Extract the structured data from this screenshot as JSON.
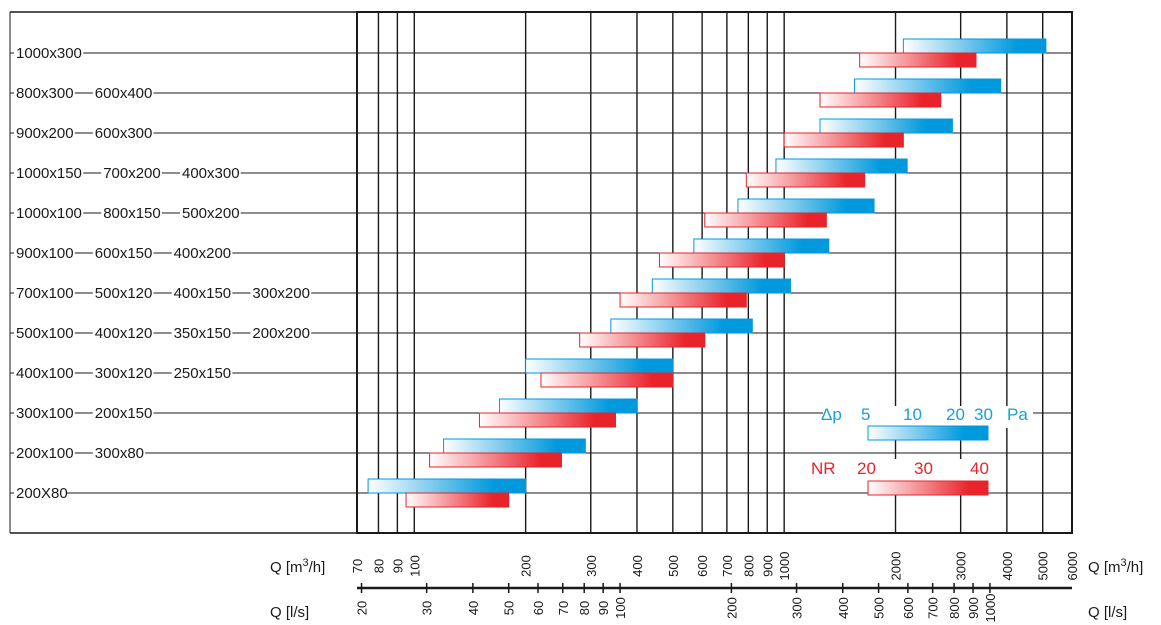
{
  "colors": {
    "dp_bar": "#0099dd",
    "dp_bar_light": "#ffffff",
    "nr_bar": "#e8232a",
    "nr_bar_light": "#ffffff",
    "dp_text": "#1aa0d8",
    "nr_text": "#e8232a",
    "grid": "#1a1a1a"
  },
  "chart_data": {
    "type": "bar",
    "orientation": "horizontal-range",
    "x_scale": "log",
    "xlim_m3h": [
      70,
      6000
    ],
    "xlabel_top": "Q [m3/h]",
    "xlabel_bottom": "Q [l/s]",
    "ticks_m3h": [
      70,
      80,
      90,
      100,
      200,
      300,
      400,
      500,
      600,
      700,
      800,
      900,
      1000,
      2000,
      3000,
      4000,
      5000,
      6000
    ],
    "ticks_m3h_labels": [
      "70",
      "80",
      "90",
      "100",
      "200",
      "300",
      "400",
      "500",
      "600",
      "700",
      "800",
      "900",
      "1000",
      "2000",
      "3000",
      "4000",
      "5000",
      "6000"
    ],
    "ticks_ls": [
      20,
      30,
      40,
      50,
      60,
      70,
      80,
      90,
      100,
      200,
      300,
      400,
      500,
      600,
      700,
      800,
      900,
      1000
    ],
    "ticks_ls_labels": [
      "20",
      "30",
      "40",
      "50",
      "60",
      "70",
      "80",
      "90",
      "100",
      "200",
      "300",
      "400",
      "500",
      "600",
      "700",
      "800",
      "900",
      "1000"
    ],
    "rows": [
      {
        "labels": [
          "1000x300"
        ],
        "dp": [
          2100,
          5100
        ],
        "nr": [
          1600,
          3300
        ]
      },
      {
        "labels": [
          "800x300",
          "600x400"
        ],
        "dp": [
          1550,
          3850
        ],
        "nr": [
          1250,
          2650
        ]
      },
      {
        "labels": [
          "900x200",
          "600x300"
        ],
        "dp": [
          1250,
          2850
        ],
        "nr": [
          1000,
          2100
        ]
      },
      {
        "labels": [
          "1000x150",
          "700x200",
          "400x300"
        ],
        "dp": [
          950,
          2150
        ],
        "nr": [
          790,
          1650
        ]
      },
      {
        "labels": [
          "1000x100",
          "800x150",
          "500x200"
        ],
        "dp": [
          750,
          1750
        ],
        "nr": [
          610,
          1300
        ]
      },
      {
        "labels": [
          "900x100",
          "600x150",
          "400x200"
        ],
        "dp": [
          570,
          1320
        ],
        "nr": [
          460,
          1000
        ]
      },
      {
        "labels": [
          "700x100",
          "500x120",
          "400x150",
          "300x200"
        ],
        "dp": [
          440,
          1040
        ],
        "nr": [
          360,
          790
        ]
      },
      {
        "labels": [
          "500x100",
          "400x120",
          "350x150",
          "200x200"
        ],
        "dp": [
          340,
          820
        ],
        "nr": [
          280,
          610
        ]
      },
      {
        "labels": [
          "400x100",
          "300x120",
          "250x150"
        ],
        "dp": [
          200,
          500
        ],
        "nr": [
          220,
          500
        ]
      },
      {
        "labels": [
          "300x100",
          "200x150"
        ],
        "dp": [
          170,
          400
        ],
        "nr": [
          150,
          350
        ]
      },
      {
        "labels": [
          "200x100",
          "300x80"
        ],
        "dp": [
          120,
          290
        ],
        "nr": [
          110,
          250
        ]
      },
      {
        "labels": [
          "200X80"
        ],
        "dp": [
          75,
          200
        ],
        "nr": [
          95,
          180
        ]
      }
    ],
    "legend": {
      "dp_label": "Δp",
      "dp_values": [
        "5",
        "10",
        "20",
        "30"
      ],
      "dp_unit": "Pa",
      "nr_label": "NR",
      "nr_values": [
        "20",
        "30",
        "40"
      ]
    }
  }
}
